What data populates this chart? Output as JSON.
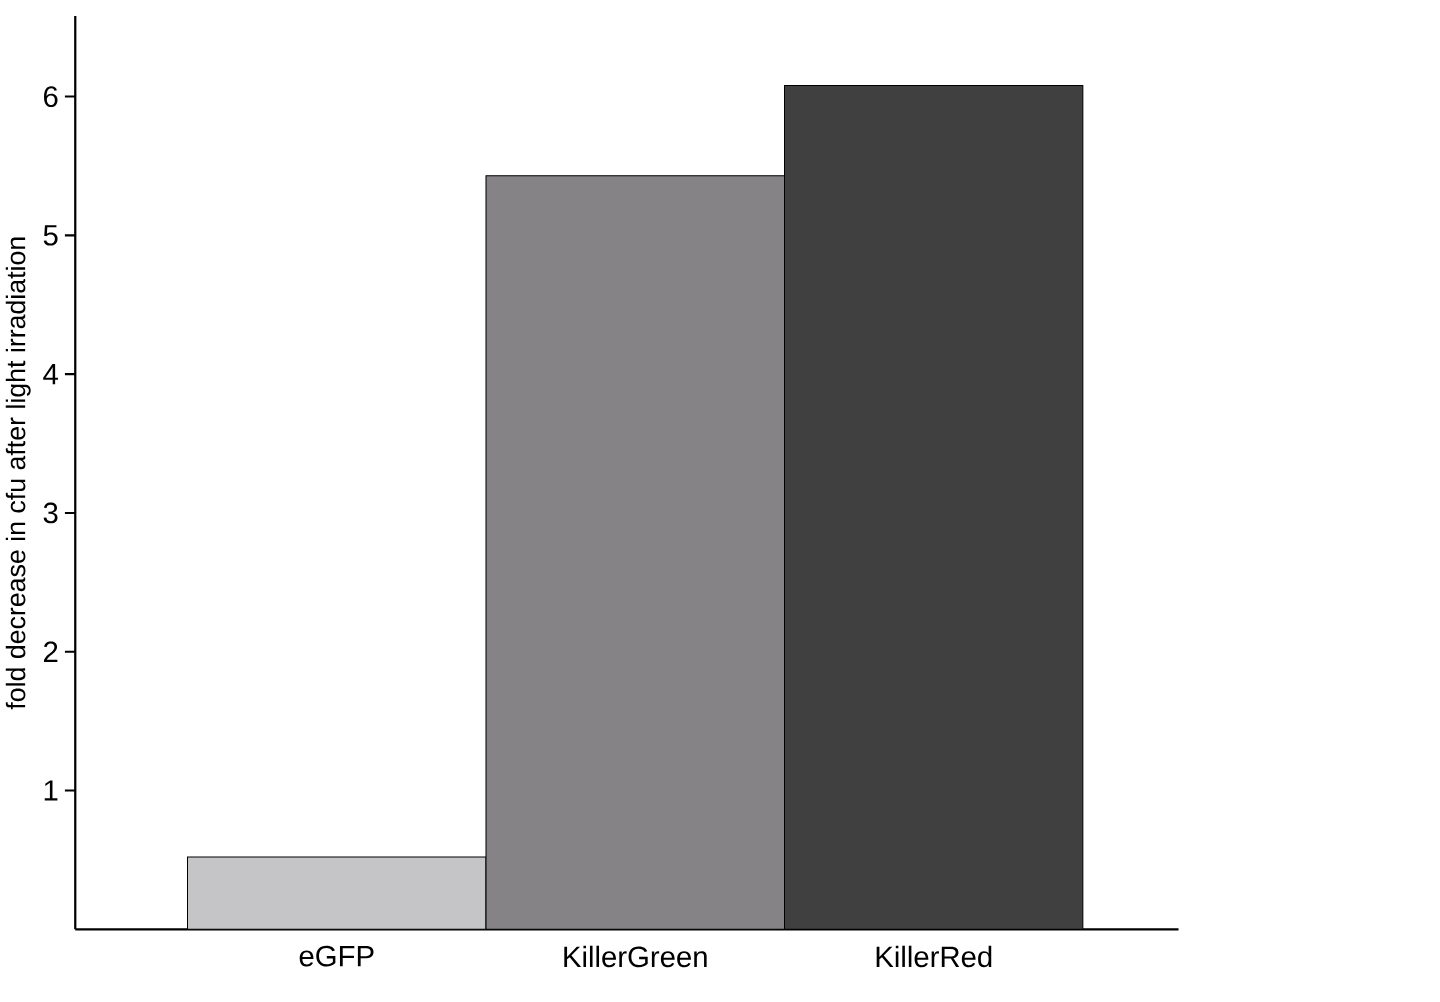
{
  "chart_data": {
    "type": "bar",
    "ylabel": "fold decrease in cfu after light irradiation",
    "categories": [
      "eGFP",
      "KillerGreen",
      "KillerRed"
    ],
    "values": [
      0.52,
      5.43,
      6.08
    ],
    "colors": [
      "#c5c4c7",
      "#858386",
      "#414041"
    ],
    "ylim": [
      0,
      6.58
    ],
    "yticks": [
      1,
      2,
      3,
      4,
      5,
      6
    ],
    "grid": false
  }
}
